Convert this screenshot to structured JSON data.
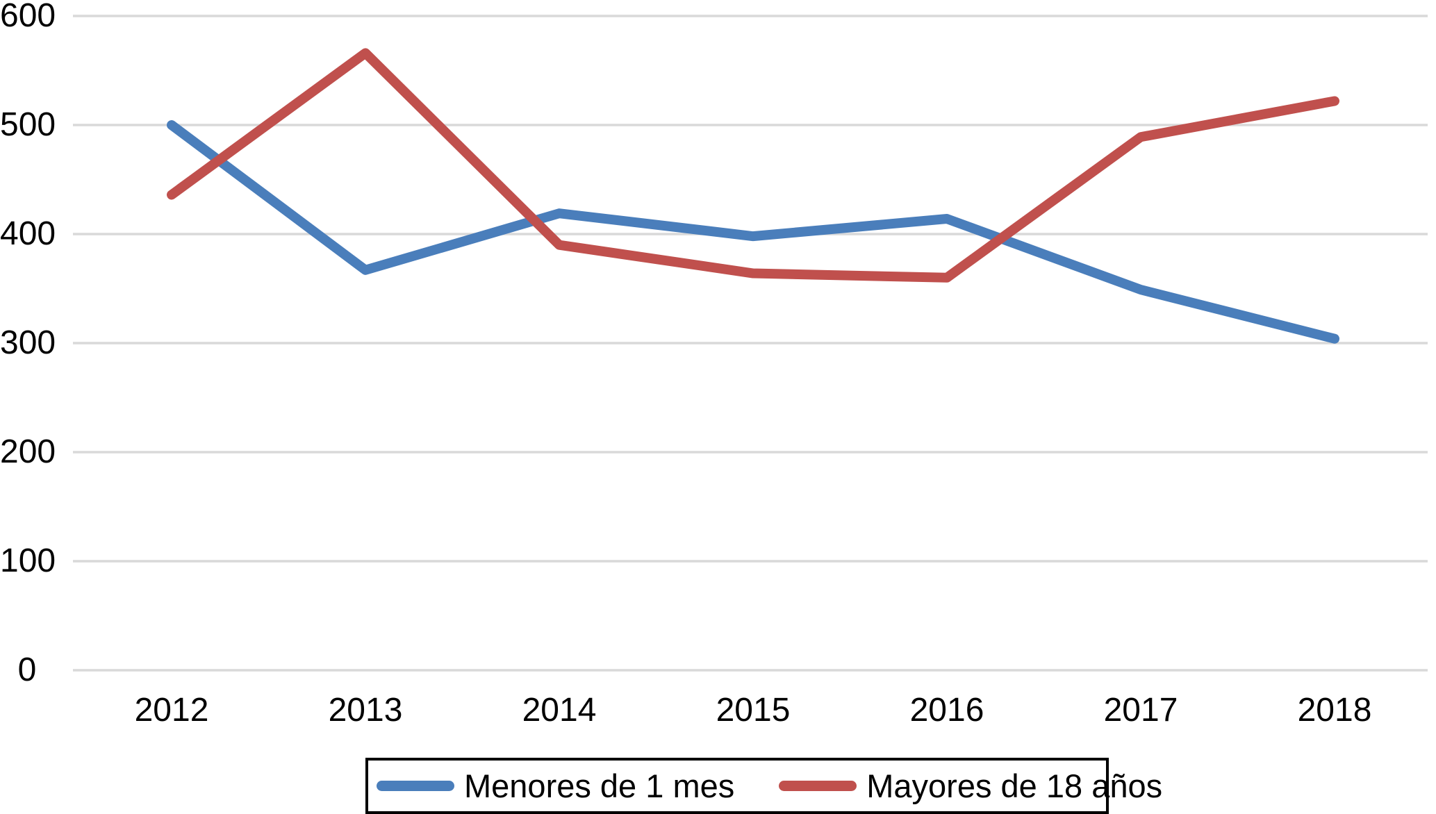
{
  "chart_data": {
    "type": "line",
    "title": "",
    "xlabel": "",
    "ylabel": "",
    "x": [
      2012,
      2013,
      2014,
      2015,
      2016,
      2017,
      2018
    ],
    "series": [
      {
        "name": "Menores de 1 mes",
        "color": "#4A7EBB",
        "values": [
          500,
          367,
          419,
          398,
          414,
          349,
          304
        ]
      },
      {
        "name": "Mayores de 18 años",
        "color": "#C0504D",
        "values": [
          436,
          566,
          390,
          364,
          360,
          489,
          522
        ]
      }
    ],
    "ylim": [
      0,
      600
    ],
    "yticks": [
      0,
      100,
      200,
      300,
      400,
      500,
      600
    ],
    "grid": "horizontal-only",
    "legend_position": "bottom-center"
  },
  "colors": {
    "background": "#FFFFFF",
    "gridline": "#D9D9D9",
    "text": "#000000",
    "legend_border": "#000000"
  }
}
